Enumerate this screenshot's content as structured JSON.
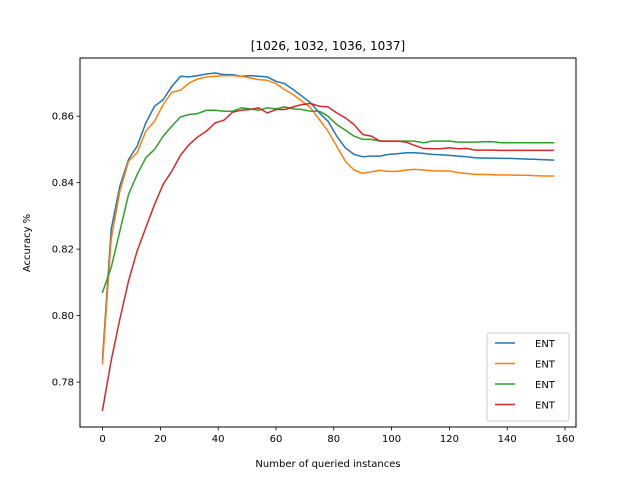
{
  "chart_data": {
    "type": "line",
    "title": "[1026, 1032, 1036, 1037]",
    "xlabel": "Number of queried instances",
    "ylabel": "Accuracy %",
    "xlim": [
      -7.8,
      163.8
    ],
    "ylim": [
      0.7665,
      0.8775
    ],
    "xticks": [
      0,
      20,
      40,
      60,
      80,
      100,
      120,
      140,
      160
    ],
    "yticks": [
      0.78,
      0.8,
      0.82,
      0.84,
      0.86
    ],
    "ytick_labels": [
      "0.78",
      "0.80",
      "0.82",
      "0.84",
      "0.86"
    ],
    "grid": false,
    "legend_position": "lower-right",
    "x": [
      0,
      3,
      6,
      9,
      12,
      15,
      18,
      21,
      24,
      27,
      30,
      33,
      36,
      39,
      42,
      45,
      48,
      51,
      54,
      57,
      60,
      63,
      66,
      69,
      72,
      75,
      78,
      81,
      84,
      87,
      90,
      93,
      96,
      99,
      102,
      105,
      108,
      111,
      114,
      117,
      120,
      123,
      126,
      129,
      132,
      135,
      138,
      141,
      144,
      147,
      150,
      153,
      156
    ],
    "series": [
      {
        "name": "ENT",
        "color": "#1f77b4",
        "values": [
          0.787,
          0.826,
          0.839,
          0.847,
          0.851,
          0.858,
          0.863,
          0.865,
          0.869,
          0.872,
          0.8718,
          0.8722,
          0.8727,
          0.873,
          0.8725,
          0.8725,
          0.872,
          0.8722,
          0.872,
          0.8718,
          0.8705,
          0.8698,
          0.868,
          0.866,
          0.864,
          0.861,
          0.8585,
          0.854,
          0.8505,
          0.8485,
          0.8478,
          0.848,
          0.848,
          0.8485,
          0.8487,
          0.849,
          0.849,
          0.8488,
          0.8485,
          0.8484,
          0.8482,
          0.848,
          0.8478,
          0.8475,
          0.8474,
          0.8474,
          0.8473,
          0.8473,
          0.8472,
          0.8471,
          0.847,
          0.8469,
          0.8468
        ]
      },
      {
        "name": "ENT",
        "color": "#ff7f0e",
        "values": [
          0.7855,
          0.823,
          0.8375,
          0.8465,
          0.849,
          0.8555,
          0.8585,
          0.8635,
          0.8672,
          0.8678,
          0.87,
          0.8712,
          0.8718,
          0.872,
          0.8722,
          0.8722,
          0.872,
          0.8715,
          0.871,
          0.8708,
          0.8698,
          0.868,
          0.8665,
          0.8645,
          0.8625,
          0.859,
          0.8555,
          0.851,
          0.8465,
          0.8438,
          0.8428,
          0.8433,
          0.8437,
          0.8434,
          0.8434,
          0.8438,
          0.844,
          0.8438,
          0.8436,
          0.8435,
          0.8435,
          0.843,
          0.8428,
          0.8425,
          0.8425,
          0.8424,
          0.8423,
          0.8423,
          0.8422,
          0.8422,
          0.8421,
          0.842,
          0.842
        ]
      },
      {
        "name": "ENT",
        "color": "#2ca02c",
        "values": [
          0.807,
          0.8145,
          0.8255,
          0.8365,
          0.8425,
          0.8475,
          0.85,
          0.854,
          0.857,
          0.8598,
          0.8605,
          0.8608,
          0.8618,
          0.8618,
          0.8615,
          0.8615,
          0.8625,
          0.8622,
          0.8618,
          0.8625,
          0.8622,
          0.8628,
          0.8622,
          0.862,
          0.8615,
          0.8615,
          0.86,
          0.8575,
          0.8558,
          0.854,
          0.853,
          0.853,
          0.8525,
          0.8525,
          0.8525,
          0.8525,
          0.8525,
          0.852,
          0.8525,
          0.8525,
          0.8525,
          0.8522,
          0.8522,
          0.8522,
          0.8523,
          0.8523,
          0.852,
          0.852,
          0.852,
          0.852,
          0.852,
          0.852,
          0.852
        ]
      },
      {
        "name": "ENT",
        "color": "#d62728",
        "values": [
          0.7715,
          0.7865,
          0.799,
          0.8105,
          0.8195,
          0.8265,
          0.8335,
          0.8395,
          0.8435,
          0.8483,
          0.8515,
          0.8538,
          0.8555,
          0.858,
          0.8588,
          0.8612,
          0.8618,
          0.862,
          0.8625,
          0.861,
          0.862,
          0.862,
          0.8628,
          0.8635,
          0.8638,
          0.863,
          0.8628,
          0.861,
          0.8595,
          0.8575,
          0.8545,
          0.854,
          0.8525,
          0.8525,
          0.8525,
          0.8522,
          0.8512,
          0.8503,
          0.8502,
          0.8502,
          0.8505,
          0.8502,
          0.8503,
          0.8498,
          0.8498,
          0.8498,
          0.8497,
          0.8497,
          0.8497,
          0.8497,
          0.8497,
          0.8497,
          0.8497
        ]
      }
    ]
  }
}
